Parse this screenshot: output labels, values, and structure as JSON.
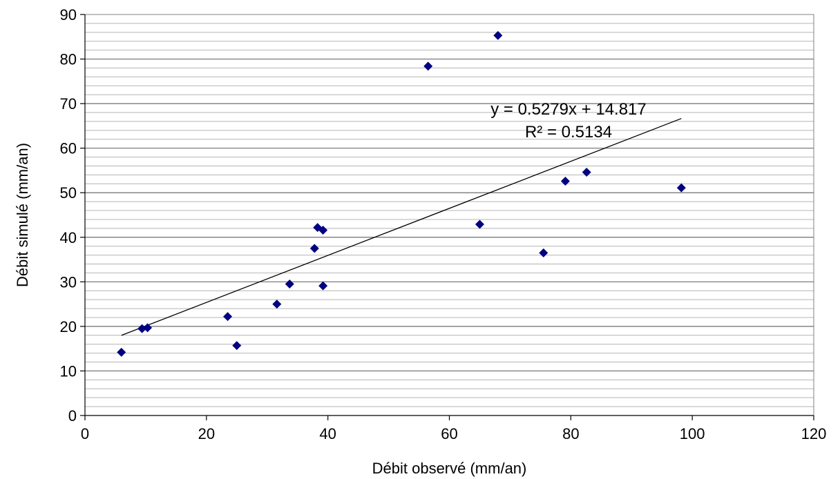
{
  "chart_data": {
    "type": "scatter",
    "title": "",
    "xlabel": "Débit observé (mm/an)",
    "ylabel": "Débit simulé (mm/an)",
    "xlim": [
      0,
      120
    ],
    "ylim": [
      0,
      90
    ],
    "xticks": [
      0,
      20,
      40,
      60,
      80,
      100,
      120
    ],
    "yticks": [
      0,
      10,
      20,
      30,
      40,
      50,
      60,
      70,
      80,
      90
    ],
    "minor_grid_step": 2,
    "grid": true,
    "marker_color": "#000080",
    "points": [
      {
        "x": 6.0,
        "y": 14.2
      },
      {
        "x": 9.4,
        "y": 19.5
      },
      {
        "x": 10.3,
        "y": 19.7
      },
      {
        "x": 23.5,
        "y": 22.2
      },
      {
        "x": 25.0,
        "y": 15.7
      },
      {
        "x": 31.6,
        "y": 25.0
      },
      {
        "x": 33.7,
        "y": 29.5
      },
      {
        "x": 37.8,
        "y": 37.5
      },
      {
        "x": 38.3,
        "y": 42.2
      },
      {
        "x": 39.2,
        "y": 41.6
      },
      {
        "x": 39.2,
        "y": 29.1
      },
      {
        "x": 56.5,
        "y": 78.4
      },
      {
        "x": 65.0,
        "y": 42.9
      },
      {
        "x": 68.0,
        "y": 85.3
      },
      {
        "x": 75.5,
        "y": 36.5
      },
      {
        "x": 79.1,
        "y": 52.6
      },
      {
        "x": 82.6,
        "y": 54.6
      },
      {
        "x": 98.2,
        "y": 51.1
      }
    ],
    "trendline": {
      "slope": 0.5279,
      "intercept": 14.817,
      "x_range": [
        6.0,
        98.2
      ],
      "equation_label": "y = 0.5279x + 14.817",
      "r2_label": "R² = 0.5134"
    }
  }
}
